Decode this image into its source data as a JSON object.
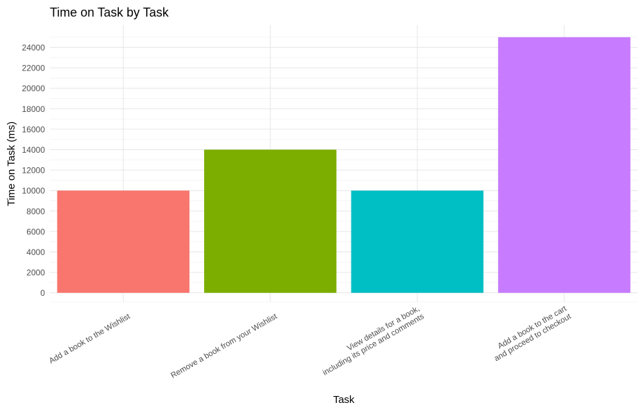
{
  "chart_data": {
    "type": "bar",
    "title": "Time on Task by Task",
    "xlabel": "Task",
    "ylabel": "Time on Task (ms)",
    "categories": [
      [
        "Add a book to the Wishlist"
      ],
      [
        "Remove a book from your Wishlist"
      ],
      [
        "View details for a book,",
        "including its price and comments"
      ],
      [
        "Add a book to the cart",
        "and proceed to checkout"
      ]
    ],
    "values": [
      10000,
      14000,
      10000,
      25000
    ],
    "colors": [
      "#F8766D",
      "#7CAE00",
      "#00BFC4",
      "#C77CFF"
    ],
    "ylim": [
      -900,
      26200
    ],
    "yticks": [
      0,
      2000,
      4000,
      6000,
      8000,
      10000,
      12000,
      14000,
      16000,
      18000,
      20000,
      22000,
      24000
    ],
    "grid": true,
    "legend": "none"
  }
}
